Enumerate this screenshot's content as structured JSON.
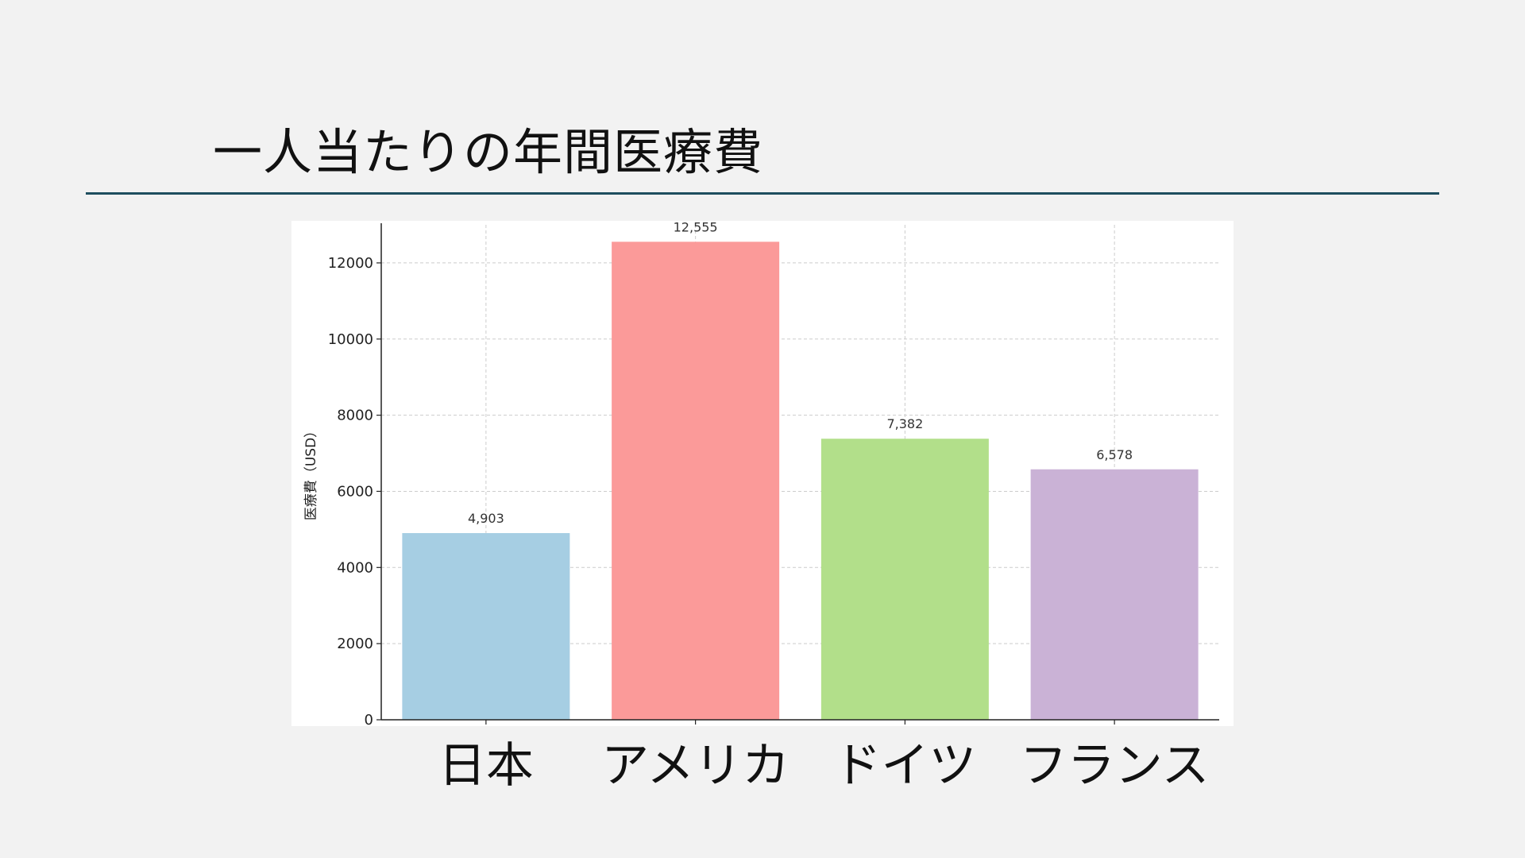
{
  "slide": {
    "title": "一人当たりの年間医療費"
  },
  "chart_data": {
    "type": "bar",
    "categories": [
      "日本",
      "アメリカ",
      "ドイツ",
      "フランス"
    ],
    "values": [
      4903,
      12555,
      7382,
      6578
    ],
    "value_labels": [
      "4,903",
      "12,555",
      "7,382",
      "6,578"
    ],
    "ylabel": "医療費（USD）",
    "ylim": [
      0,
      13000
    ],
    "yticks": [
      0,
      2000,
      4000,
      6000,
      8000,
      10000,
      12000
    ],
    "grid": true,
    "colors": [
      "#a6cee3",
      "#fb9a99",
      "#b2df8a",
      "#cab2d6"
    ]
  }
}
